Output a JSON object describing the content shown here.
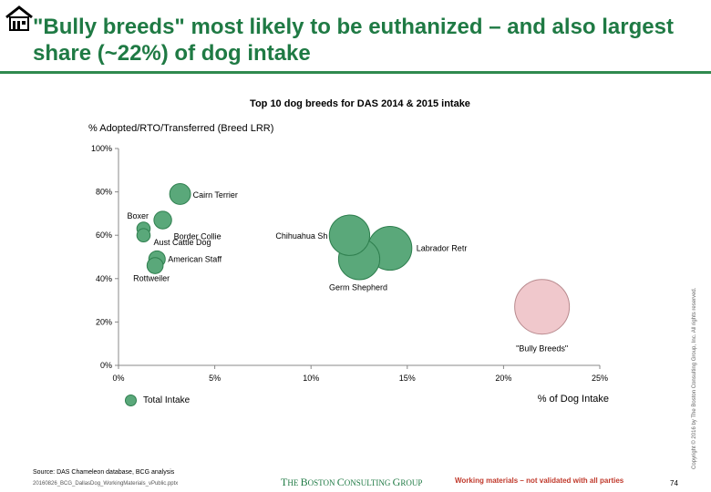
{
  "header": {
    "title": "\"Bully breeds\" most likely to be euthanized – and also largest share (~22%) of dog intake",
    "icon": "house-icon"
  },
  "chart_data": {
    "type": "bubble",
    "title": "Top 10 dog breeds for DAS 2014 & 2015 intake",
    "ylabel": "% Adopted/RTO/Transferred (Breed LRR)",
    "xlabel": "% of Dog Intake",
    "xlim": [
      0,
      25
    ],
    "ylim": [
      0,
      100
    ],
    "xticks": [
      "0%",
      "5%",
      "10%",
      "15%",
      "20%",
      "25%"
    ],
    "yticks": [
      "0%",
      "20%",
      "40%",
      "60%",
      "80%",
      "100%"
    ],
    "grid": false,
    "legend": {
      "position": "bottom-left",
      "entries": [
        "Total Intake"
      ]
    },
    "colors": {
      "breed": "#5aa87a",
      "breed_border": "#2f7f4f",
      "bully": "#f0c8cc",
      "bully_border": "#b88a8e"
    },
    "points": [
      {
        "label": "Cairn Terrier",
        "x": 3.2,
        "y": 79,
        "intake": 3.2
      },
      {
        "label": "Boxer",
        "x": 1.3,
        "y": 63,
        "intake": 1.3
      },
      {
        "label": "Border Collie",
        "x": 2.3,
        "y": 67,
        "intake": 2.3
      },
      {
        "label": "Aust Cattle Dog",
        "x": 1.3,
        "y": 60,
        "intake": 1.3
      },
      {
        "label": "American Staff",
        "x": 2.0,
        "y": 49,
        "intake": 2.0
      },
      {
        "label": "Rottweiler",
        "x": 1.9,
        "y": 46,
        "intake": 1.9
      },
      {
        "label": "Chihuahua Sh",
        "x": 12.0,
        "y": 60,
        "intake": 12.0
      },
      {
        "label": "Labrador Retr",
        "x": 14.1,
        "y": 54,
        "intake": 14.1
      },
      {
        "label": "Germ Shepherd",
        "x": 12.5,
        "y": 49,
        "intake": 12.5
      },
      {
        "label": "\"Bully Breeds\"",
        "x": 22.0,
        "y": 27,
        "intake": 22.0,
        "highlight": true
      }
    ]
  },
  "footer": {
    "source": "Source: DAS Chameleon database, BCG analysis",
    "filename": "20160826_BCG_DallasDog_WorkingMaterials_vPublic.pptx",
    "logo": {
      "first": "T",
      "rest1": "HE ",
      "b": "B",
      "rest2": "OSTON ",
      "c": "C",
      "rest3": "ONSULTING ",
      "g": "G",
      "rest4": "ROUP"
    },
    "disclaimer": "Working materials – not validated with all parties",
    "page": "74",
    "copyright": "Copyright © 2016 by The Boston Consulting Group, Inc. All rights reserved."
  }
}
